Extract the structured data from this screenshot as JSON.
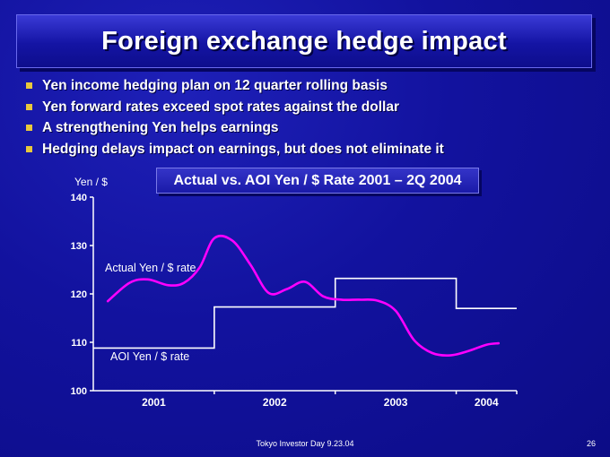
{
  "slide": {
    "title": "Foreign exchange hedge impact",
    "bullets": [
      "Yen income hedging plan on 12 quarter rolling basis",
      "Yen forward rates exceed spot rates against the dollar",
      "A strengthening Yen helps earnings",
      "Hedging delays impact on earnings, but does not eliminate it"
    ],
    "footer": "Tokyo Investor Day 9.23.04",
    "page_number": "26"
  },
  "colors": {
    "background": "#10109a",
    "actual_line": "#ff00ff",
    "aoi_line": "#ffffff",
    "bullet": "#e8c83c"
  },
  "chart_data": {
    "type": "line",
    "title": "Actual vs. AOI Yen / $ Rate 2001 – 2Q 2004",
    "ylabel": "Yen / $",
    "ylim": [
      100,
      140
    ],
    "yticks": [
      100,
      110,
      120,
      130,
      140
    ],
    "x_range": [
      2001.0,
      2004.5
    ],
    "categories": [
      "2001",
      "2002",
      "2003",
      "2004"
    ],
    "series": [
      {
        "name": "Actual Yen / $ rate",
        "x": [
          2001.12,
          2001.3,
          2001.45,
          2001.62,
          2001.75,
          2001.88,
          2002.0,
          2002.15,
          2002.3,
          2002.45,
          2002.6,
          2002.75,
          2002.9,
          2003.05,
          2003.2,
          2003.35,
          2003.5,
          2003.65,
          2003.8,
          2003.95,
          2004.1,
          2004.25,
          2004.35
        ],
        "y": [
          118.5,
          122.3,
          123.0,
          121.8,
          122.3,
          125.5,
          131.5,
          131.0,
          126.0,
          120.2,
          121.0,
          122.5,
          119.5,
          118.8,
          118.8,
          118.6,
          116.5,
          110.5,
          107.8,
          107.3,
          108.2,
          109.5,
          109.8
        ]
      },
      {
        "name": "AOI Yen / $ rate",
        "step_x": [
          2001.0,
          2002.0,
          2003.0,
          2004.0,
          2004.5
        ],
        "step_y": [
          108.8,
          117.3,
          123.2,
          117.0
        ]
      }
    ]
  }
}
